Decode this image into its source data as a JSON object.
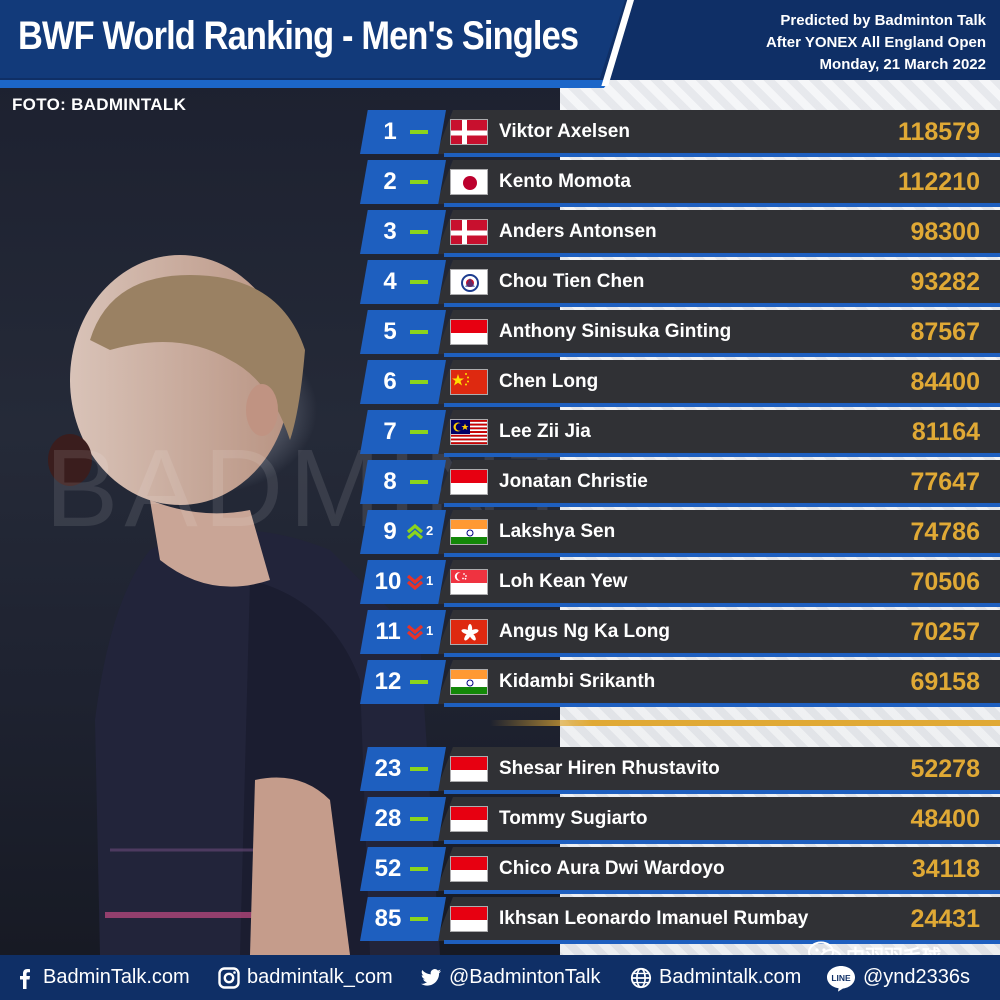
{
  "header": {
    "title": "BWF World Ranking - Men's Singles",
    "predicted_by": "Predicted by Badminton Talk",
    "after": "After YONEX All England Open",
    "date": "Monday, 21 March 2022"
  },
  "photo_credit": "FOTO: BADMINTALK",
  "watermark": "BADMINTALK",
  "colors": {
    "header_bg": "#0f2f66",
    "accent_blue": "#1e5fbf",
    "row_bg": "#303135",
    "points_gold": "#e0a935",
    "up_green": "#8bd41c",
    "down_red": "#e6332a"
  },
  "rankings": [
    {
      "rank": "1",
      "trend": "same",
      "change": "",
      "flag": "denmark",
      "name": "Viktor Axelsen",
      "points": "118579"
    },
    {
      "rank": "2",
      "trend": "same",
      "change": "",
      "flag": "japan",
      "name": "Kento Momota",
      "points": "112210"
    },
    {
      "rank": "3",
      "trend": "same",
      "change": "",
      "flag": "denmark",
      "name": "Anders Antonsen",
      "points": "98300"
    },
    {
      "rank": "4",
      "trend": "same",
      "change": "",
      "flag": "chinese-taipei",
      "name": "Chou Tien Chen",
      "points": "93282"
    },
    {
      "rank": "5",
      "trend": "same",
      "change": "",
      "flag": "indonesia",
      "name": "Anthony Sinisuka Ginting",
      "points": "87567"
    },
    {
      "rank": "6",
      "trend": "same",
      "change": "",
      "flag": "china",
      "name": "Chen Long",
      "points": "84400"
    },
    {
      "rank": "7",
      "trend": "same",
      "change": "",
      "flag": "malaysia",
      "name": "Lee Zii Jia",
      "points": "81164"
    },
    {
      "rank": "8",
      "trend": "same",
      "change": "",
      "flag": "indonesia",
      "name": "Jonatan Christie",
      "points": "77647"
    },
    {
      "rank": "9",
      "trend": "up",
      "change": "2",
      "flag": "india",
      "name": "Lakshya Sen",
      "points": "74786"
    },
    {
      "rank": "10",
      "trend": "down",
      "change": "1",
      "flag": "singapore",
      "name": "Loh Kean Yew",
      "points": "70506"
    },
    {
      "rank": "11",
      "trend": "down",
      "change": "1",
      "flag": "hong-kong",
      "name": "Angus Ng Ka Long",
      "points": "70257"
    },
    {
      "rank": "12",
      "trend": "same",
      "change": "",
      "flag": "india",
      "name": "Kidambi Srikanth",
      "points": "69158"
    },
    {
      "rank": "23",
      "trend": "same",
      "change": "",
      "flag": "indonesia",
      "name": "Shesar Hiren Rhustavito",
      "points": "52278"
    },
    {
      "rank": "28",
      "trend": "same",
      "change": "",
      "flag": "indonesia",
      "name": "Tommy Sugiarto",
      "points": "48400"
    },
    {
      "rank": "52",
      "trend": "same",
      "change": "",
      "flag": "indonesia",
      "name": "Chico Aura Dwi Wardoyo",
      "points": "34118"
    },
    {
      "rank": "85",
      "trend": "same",
      "change": "",
      "flag": "indonesia",
      "name": "Ikhsan Leonardo Imanuel Rumbay",
      "points": "24431"
    }
  ],
  "footer": {
    "facebook": {
      "icon": "facebook-icon",
      "label": "BadminTalk.com"
    },
    "instagram": {
      "icon": "instagram-icon",
      "label": "badmintalk_com"
    },
    "twitter": {
      "icon": "twitter-icon",
      "label": "@BadmintonTalk"
    },
    "website": {
      "icon": "globe-icon",
      "label": "Badmintalk.com"
    },
    "line": {
      "icon": "line-icon",
      "label": "@ynd2336s"
    }
  },
  "wechat_watermark": {
    "icon": "wechat-icon",
    "label": "中羽羽毛球"
  }
}
